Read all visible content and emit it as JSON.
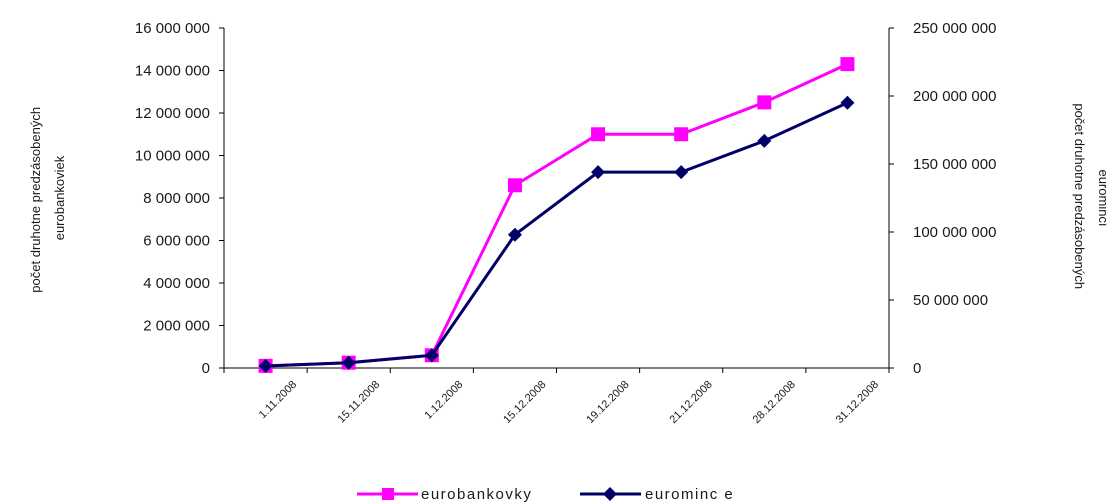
{
  "chart_data": {
    "type": "line",
    "title": "",
    "categories": [
      "1.11.2008",
      "15.11.2008",
      "1.12.2008",
      "15.12.2008",
      "19.12.2008",
      "21.12.2008",
      "28.12.2008",
      "31.12.2008"
    ],
    "ylabel_left": [
      "počet druhotne predzásobených",
      "eurobankoviek"
    ],
    "ylabel_right": [
      "počet druhotne predzásobených",
      "euromincí"
    ],
    "y_left": {
      "min": 0,
      "max": 16000000,
      "ticks": [
        "0",
        "2 000 000",
        "4 000 000",
        "6 000 000",
        "8 000 000",
        "10 000 000",
        "12 000 000",
        "14 000 000",
        "16 000 000"
      ]
    },
    "y_right": {
      "min": 0,
      "max": 250000000,
      "ticks": [
        "0",
        "50 000 000",
        "100 000 000",
        "150 000 000",
        "200 000 000",
        "250 000 000"
      ]
    },
    "grid": false,
    "legend_position": "bottom",
    "series": [
      {
        "name": "eurobankovky",
        "axis": "left",
        "color": "#ff00ff",
        "marker": "square",
        "values": [
          100000,
          250000,
          600000,
          8600000,
          11000000,
          11000000,
          12500000,
          14300000
        ]
      },
      {
        "name": "eurominc e",
        "axis": "right",
        "color": "#000066",
        "marker": "diamond",
        "values": [
          1500000,
          3900000,
          9300000,
          98000000,
          144000000,
          144000000,
          167000000,
          195000000
        ]
      }
    ]
  }
}
